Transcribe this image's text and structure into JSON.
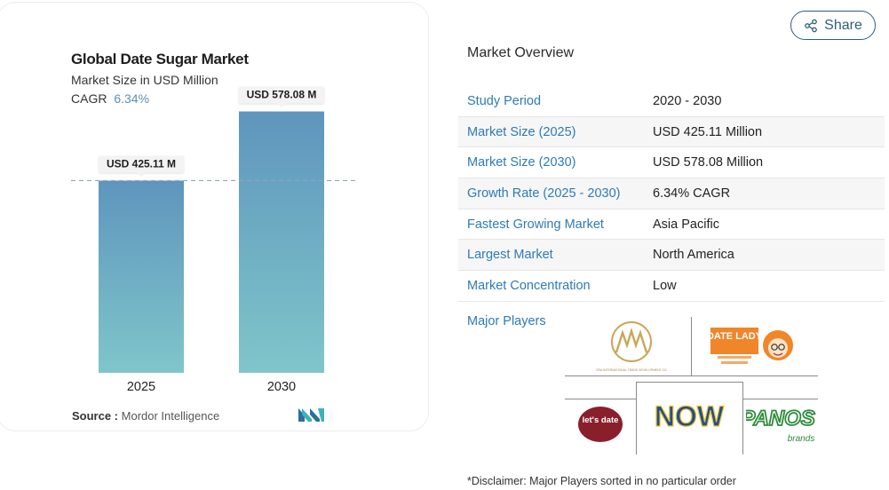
{
  "chart_data": {
    "type": "bar",
    "title": "Global Date Sugar Market",
    "subtitle": "Market Size in USD Million",
    "cagr_label": "CAGR",
    "cagr_value": "6.34%",
    "categories": [
      "2025",
      "2030"
    ],
    "values": [
      425.11,
      578.08
    ],
    "data_labels": [
      "USD 425.11 M",
      "USD 578.08 M"
    ],
    "ylim": [
      0,
      640
    ],
    "grid": false,
    "reference_line": 425.11,
    "colors": {
      "bar_top": "#5f95bd",
      "bar_bottom": "#7fc6ca"
    }
  },
  "source": {
    "label": "Source :",
    "text": "Mordor Intelligence"
  },
  "share": {
    "label": "Share",
    "icon": "share-icon"
  },
  "overview": {
    "title": "Market Overview",
    "rows": [
      {
        "label": "Study Period",
        "value": "2020 - 2030"
      },
      {
        "label": "Market Size (2025)",
        "value": "USD 425.11 Million"
      },
      {
        "label": "Market Size (2030)",
        "value": "USD 578.08 Million"
      },
      {
        "label": "Growth Rate (2025 - 2030)",
        "value": "6.34% CAGR"
      },
      {
        "label": "Fastest Growing Market",
        "value": "Asia Pacific"
      },
      {
        "label": "Largest Market",
        "value": "North America"
      },
      {
        "label": "Market Concentration",
        "value": "Low"
      }
    ]
  },
  "players": {
    "label": "Major Players",
    "logos": [
      {
        "name": "SRA International Trade Development Co",
        "icon": "sra-logo",
        "text": "SRA INTERNATIONAL TRADE DEVELOPMENT CO"
      },
      {
        "name": "Date Lady",
        "icon": "date-lady-logo",
        "text": "DATE LADY"
      },
      {
        "name": "let's date",
        "icon": "lets-date-logo",
        "text": "let's date"
      },
      {
        "name": "NOW",
        "icon": "now-logo",
        "text": "NOW"
      },
      {
        "name": "Panos brands",
        "icon": "panos-logo",
        "text": "PANOS",
        "subtext": "brands"
      }
    ]
  },
  "disclaimer": "*Disclaimer: Major Players sorted in no particular order"
}
